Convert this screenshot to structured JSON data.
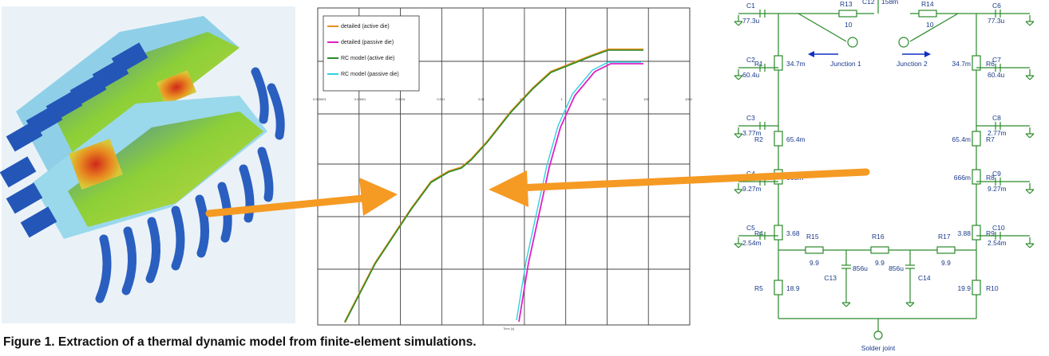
{
  "caption": "Figure 1. Extraction of a thermal dynamic model from finite-element simulations.",
  "chart_data": {
    "type": "line",
    "x_scale": "log",
    "x_ticks": [
      "0.000001",
      "0.00001",
      "0.0001",
      "0.001",
      "0.01",
      "0.1",
      "1",
      "10",
      "100",
      "1000"
    ],
    "series": [
      {
        "name": "detailed (active die)",
        "color": "#e8901c"
      },
      {
        "name": "detailed (passive die)",
        "color": "#e020c8"
      },
      {
        "name": "RC model (active die)",
        "color": "#2a8a2a"
      },
      {
        "name": "RC model (passive die)",
        "color": "#30d0e0"
      }
    ],
    "grid": true,
    "legend": "top-left"
  },
  "arrow_color": "#f59a23",
  "circuit": {
    "wire_color": "#2a8a2a",
    "label_color": "#1a3a8a",
    "top_resistors": [
      {
        "name": "R13",
        "value": "10"
      },
      {
        "name": "R14",
        "value": "10"
      }
    ],
    "top_cap": {
      "name": "C12",
      "value": "158m"
    },
    "left": [
      {
        "c": "C1",
        "cv": "77.3u",
        "r": "R1",
        "rv": "34.7m"
      },
      {
        "c": "C2",
        "cv": "60.4u",
        "r": "R2",
        "rv": "65.4m"
      },
      {
        "c": "C3",
        "cv": "3.77m",
        "r": "R3",
        "rv": "665m"
      },
      {
        "c": "C4",
        "cv": "9.27m",
        "r": "R4",
        "rv": "3.68"
      },
      {
        "c": "C5",
        "cv": "2.54m",
        "r": "R5",
        "rv": "18.9"
      }
    ],
    "right": [
      {
        "c": "C6",
        "cv": "77.3u",
        "r": "R6",
        "rv": "34.7m"
      },
      {
        "c": "C7",
        "cv": "60.4u",
        "r": "R7",
        "rv": "65.4m"
      },
      {
        "c": "C8",
        "cv": "2.77m",
        "r": "R8",
        "rv": "666m"
      },
      {
        "c": "C9",
        "cv": "9.27m",
        "r": "R9",
        "rv": "3.88"
      },
      {
        "c": "C10",
        "cv": "2.54m",
        "r": "R10",
        "rv": "19.9"
      }
    ],
    "bottom_resistors": [
      {
        "name": "R15",
        "value": "9.9"
      },
      {
        "name": "R16",
        "value": "9.9"
      },
      {
        "name": "R17",
        "value": "9.9"
      }
    ],
    "bottom_caps": [
      {
        "name": "C13",
        "value": "856u"
      },
      {
        "name": "C14",
        "value": "856u"
      }
    ],
    "junction1": "Junction 1",
    "junction2": "Junction 2",
    "solder": "Solder joint"
  }
}
